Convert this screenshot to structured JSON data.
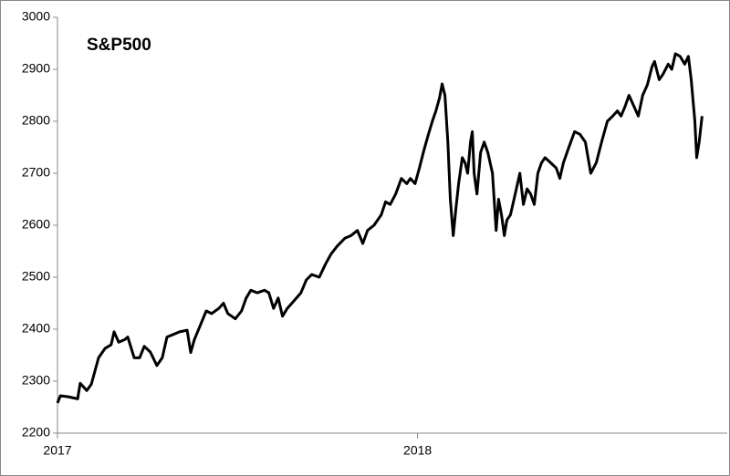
{
  "chart_data": {
    "type": "line",
    "title": "S&P500",
    "x": [
      2017.0,
      2017.008,
      2017.03,
      2017.056,
      2017.063,
      2017.081,
      2017.094,
      2017.114,
      2017.132,
      2017.149,
      2017.157,
      2017.17,
      2017.187,
      2017.195,
      2017.213,
      2017.228,
      2017.241,
      2017.258,
      2017.276,
      2017.291,
      2017.304,
      2017.322,
      2017.339,
      2017.36,
      2017.37,
      2017.38,
      2017.398,
      2017.413,
      2017.428,
      2017.448,
      2017.461,
      2017.473,
      2017.494,
      2017.511,
      2017.524,
      2017.537,
      2017.555,
      2017.575,
      2017.587,
      2017.6,
      2017.613,
      2017.625,
      2017.638,
      2017.651,
      2017.676,
      2017.691,
      2017.706,
      2017.727,
      2017.744,
      2017.76,
      2017.777,
      2017.798,
      2017.815,
      2017.833,
      2017.848,
      2017.861,
      2017.879,
      2017.899,
      2017.911,
      2017.924,
      2017.939,
      2017.955,
      2017.97,
      2017.98,
      2017.993,
      2018.005,
      2018.018,
      2018.03,
      2018.041,
      2018.051,
      2018.061,
      2018.068,
      2018.076,
      2018.084,
      2018.091,
      2018.099,
      2018.106,
      2018.114,
      2018.124,
      2018.132,
      2018.139,
      2018.147,
      2018.152,
      2018.157,
      2018.165,
      2018.175,
      2018.185,
      2018.195,
      2018.208,
      2018.218,
      2018.225,
      2018.233,
      2018.241,
      2018.248,
      2018.258,
      2018.271,
      2018.284,
      2018.294,
      2018.304,
      2018.314,
      2018.324,
      2018.334,
      2018.344,
      2018.354,
      2018.37,
      2018.385,
      2018.395,
      2018.405,
      2018.42,
      2018.436,
      2018.451,
      2018.466,
      2018.481,
      2018.496,
      2018.511,
      2018.527,
      2018.542,
      2018.555,
      2018.565,
      2018.577,
      2018.587,
      2018.6,
      2018.613,
      2018.625,
      2018.638,
      2018.651,
      2018.658,
      2018.671,
      2018.681,
      2018.696,
      2018.706,
      2018.716,
      2018.729,
      2018.742,
      2018.752,
      2018.76,
      2018.77,
      2018.775,
      2018.782,
      2018.79
    ],
    "series": [
      {
        "name": "S&P500",
        "color": "#000000",
        "values": [
          2258,
          2272,
          2270,
          2266,
          2296,
          2282,
          2294,
          2345,
          2363,
          2370,
          2395,
          2375,
          2380,
          2385,
          2345,
          2345,
          2367,
          2356,
          2330,
          2345,
          2385,
          2390,
          2395,
          2398,
          2355,
          2380,
          2410,
          2435,
          2430,
          2440,
          2450,
          2430,
          2420,
          2435,
          2460,
          2475,
          2470,
          2475,
          2470,
          2440,
          2460,
          2425,
          2440,
          2450,
          2470,
          2495,
          2505,
          2500,
          2525,
          2545,
          2560,
          2575,
          2580,
          2590,
          2565,
          2590,
          2600,
          2620,
          2645,
          2640,
          2660,
          2690,
          2680,
          2690,
          2680,
          2710,
          2745,
          2775,
          2800,
          2820,
          2845,
          2872,
          2850,
          2760,
          2650,
          2580,
          2630,
          2680,
          2730,
          2720,
          2700,
          2760,
          2780,
          2700,
          2660,
          2740,
          2760,
          2740,
          2700,
          2590,
          2650,
          2620,
          2580,
          2610,
          2620,
          2660,
          2700,
          2640,
          2670,
          2660,
          2640,
          2700,
          2720,
          2730,
          2720,
          2710,
          2690,
          2720,
          2750,
          2780,
          2775,
          2760,
          2700,
          2720,
          2760,
          2800,
          2810,
          2820,
          2810,
          2830,
          2850,
          2830,
          2810,
          2850,
          2870,
          2905,
          2915,
          2880,
          2890,
          2910,
          2900,
          2930,
          2925,
          2910,
          2925,
          2880,
          2800,
          2730,
          2760,
          2810
        ]
      }
    ],
    "xlim": [
      2017,
      2018.86
    ],
    "xticks": [
      2017,
      2018
    ],
    "ylim": [
      2200,
      3000
    ],
    "yticks": [
      2200,
      2300,
      2400,
      2500,
      2600,
      2700,
      2800,
      2900,
      3000
    ],
    "grid": false
  }
}
